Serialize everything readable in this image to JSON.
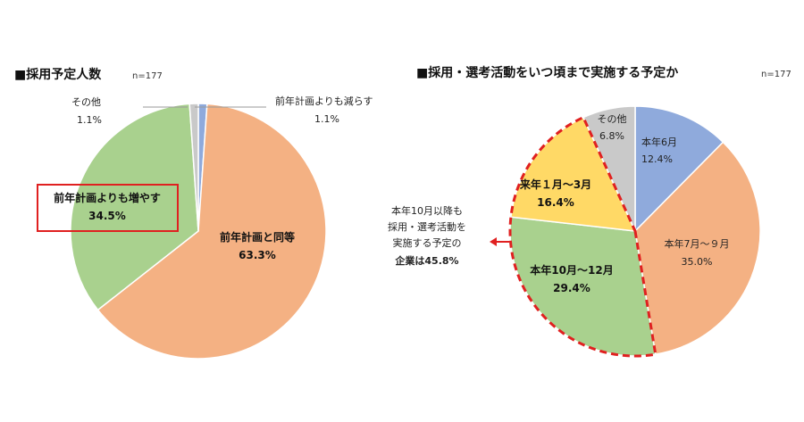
{
  "chart_data": [
    {
      "type": "pie",
      "title": "■採用予定人数",
      "n_label": "n=177",
      "slices": [
        {
          "label": "前年計画と同等",
          "value": 63.3,
          "value_label": "63.3%",
          "color": "#F4B183"
        },
        {
          "label": "前年計画よりも増やす",
          "value": 34.5,
          "value_label": "34.5%",
          "color": "#A9D18E"
        },
        {
          "label": "その他",
          "value": 1.1,
          "value_label": "1.1%",
          "color": "#C9C9C9"
        },
        {
          "label": "前年計画よりも減らす",
          "value": 1.1,
          "value_label": "1.1%",
          "color": "#8FAADC"
        }
      ]
    },
    {
      "type": "pie",
      "title": "■採用・選考活動をいつ頃まで実施する予定か",
      "n_label": "n=177",
      "slices": [
        {
          "label": "本年6月",
          "value": 12.4,
          "value_label": "12.4%",
          "color": "#8FAADC"
        },
        {
          "label": "本年7月～９月",
          "value": 35.0,
          "value_label": "35.0%",
          "color": "#F4B183"
        },
        {
          "label": "本年10月～12月",
          "value": 29.4,
          "value_label": "29.4%",
          "color": "#A9D18E"
        },
        {
          "label": "来年１月～3月",
          "value": 16.4,
          "value_label": "16.4%",
          "color": "#FFD966"
        },
        {
          "label": "その他",
          "value": 6.8,
          "value_label": "6.8%",
          "color": "#C9C9C9"
        }
      ],
      "annotation": [
        "本年10月以降も",
        "採用・選考活動を",
        "実施する予定の",
        "企業は45.8%"
      ]
    }
  ]
}
